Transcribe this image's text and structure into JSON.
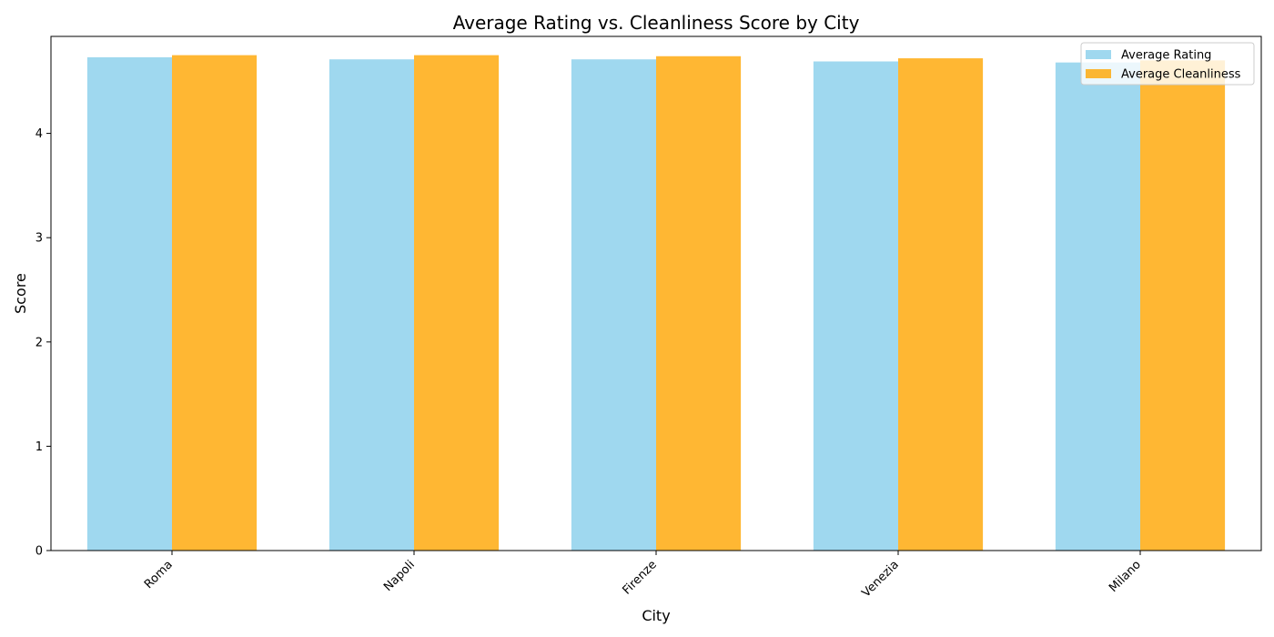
{
  "chart_data": {
    "type": "bar",
    "title": "Average Rating vs. Cleanliness Score by City",
    "xlabel": "City",
    "ylabel": "Score",
    "categories": [
      "Roma",
      "Napoli",
      "Firenze",
      "Venezia",
      "Milano"
    ],
    "series": [
      {
        "name": "Average Rating",
        "color": "#87CEEB",
        "values": [
          4.73,
          4.71,
          4.71,
          4.69,
          4.68
        ]
      },
      {
        "name": "Average Cleanliness",
        "color": "#FFA500",
        "values": [
          4.75,
          4.75,
          4.74,
          4.72,
          4.7
        ]
      }
    ],
    "ylim": [
      0,
      4.93
    ],
    "yticks": [
      0,
      1,
      2,
      3,
      4
    ],
    "grid": false,
    "legend_position": "upper right",
    "bar_alpha": 0.8
  }
}
